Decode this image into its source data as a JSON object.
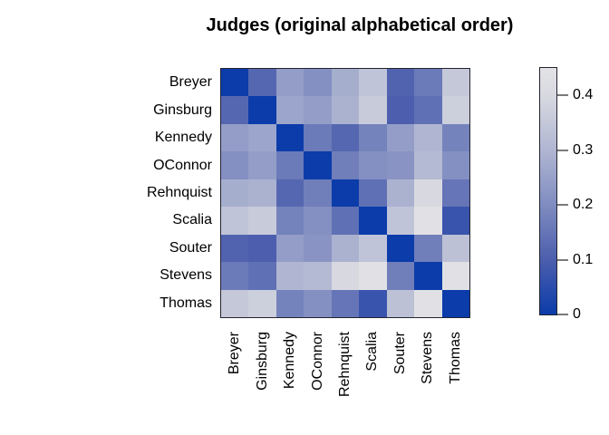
{
  "title": "Judges (original alphabetical order)",
  "chart_data": {
    "type": "heatmap",
    "title": "Judges (original alphabetical order)",
    "row_labels": [
      "Breyer",
      "Ginsburg",
      "Kennedy",
      "OConnor",
      "Rehnquist",
      "Scalia",
      "Souter",
      "Stevens",
      "Thomas"
    ],
    "col_labels": [
      "Breyer",
      "Ginsburg",
      "Kennedy",
      "OConnor",
      "Rehnquist",
      "Scalia",
      "Souter",
      "Stevens",
      "Thomas"
    ],
    "matrix": [
      [
        0.0,
        0.12,
        0.24,
        0.21,
        0.28,
        0.34,
        0.11,
        0.16,
        0.35
      ],
      [
        0.12,
        0.0,
        0.26,
        0.24,
        0.29,
        0.36,
        0.1,
        0.14,
        0.37
      ],
      [
        0.24,
        0.26,
        0.0,
        0.16,
        0.12,
        0.18,
        0.24,
        0.3,
        0.18
      ],
      [
        0.21,
        0.24,
        0.16,
        0.0,
        0.17,
        0.21,
        0.22,
        0.31,
        0.21
      ],
      [
        0.28,
        0.29,
        0.12,
        0.17,
        0.0,
        0.14,
        0.29,
        0.4,
        0.15
      ],
      [
        0.34,
        0.36,
        0.18,
        0.21,
        0.14,
        0.0,
        0.34,
        0.44,
        0.07
      ],
      [
        0.11,
        0.1,
        0.24,
        0.22,
        0.29,
        0.34,
        0.0,
        0.17,
        0.33
      ],
      [
        0.16,
        0.14,
        0.3,
        0.31,
        0.4,
        0.44,
        0.17,
        0.0,
        0.44
      ],
      [
        0.35,
        0.37,
        0.18,
        0.21,
        0.15,
        0.07,
        0.33,
        0.44,
        0.0
      ]
    ],
    "value_range": [
      0,
      0.45
    ],
    "diagonal_value": 0,
    "colorbar": {
      "position": "right",
      "orientation": "vertical",
      "tick_labels": [
        "0",
        "0.1",
        "0.2",
        "0.3",
        "0.4"
      ],
      "tick_values": [
        0,
        0.1,
        0.2,
        0.3,
        0.4
      ]
    },
    "colors": {
      "ramp": [
        [
          0.0,
          "#0b3caa"
        ],
        [
          0.1,
          "#4c5ead"
        ],
        [
          0.2,
          "#7f8cc0"
        ],
        [
          0.3,
          "#b0b6d2"
        ],
        [
          0.4,
          "#d8d9e0"
        ],
        [
          0.45,
          "#e3e3e6"
        ]
      ],
      "border": "#23232e",
      "background": "#ffffff",
      "text": "#000000"
    },
    "grid": false,
    "legend_position": "right"
  }
}
